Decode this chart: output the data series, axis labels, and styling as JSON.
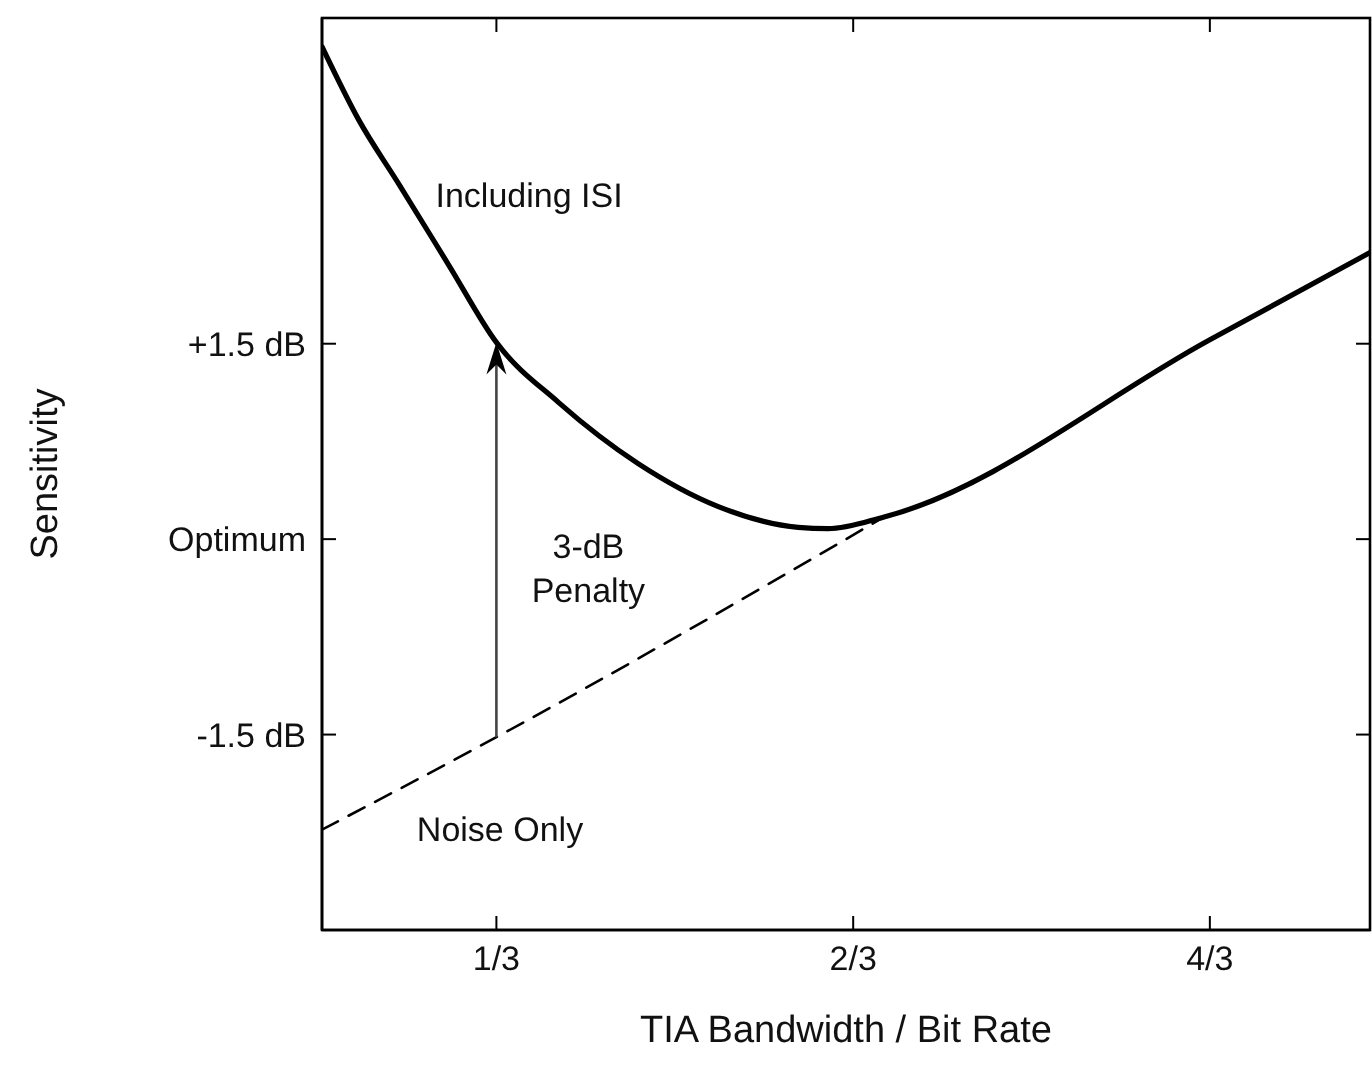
{
  "chart_data": {
    "type": "line",
    "xlabel": "TIA Bandwidth / Bit Rate",
    "ylabel": "Sensitivity",
    "log": "x",
    "xlim": [
      0.2375,
      1.82
    ],
    "ylim": [
      -3,
      4
    ],
    "xticks": [
      {
        "value": 0.3333,
        "label": "1/3"
      },
      {
        "value": 0.6667,
        "label": "2/3"
      },
      {
        "value": 1.3333,
        "label": "4/3"
      }
    ],
    "yticks": [
      {
        "value": -1.5,
        "label": "-1.5 dB"
      },
      {
        "value": 0,
        "label": "Optimum"
      },
      {
        "value": 1.5,
        "label": "+1.5 dB"
      }
    ],
    "marker": "none",
    "series": [
      {
        "name": "Including ISI",
        "color": "#000000",
        "line_style": "solid",
        "x": [
          0.2375,
          0.255,
          0.276,
          0.304,
          0.3333,
          0.376,
          0.439,
          0.513,
          0.599,
          0.635,
          0.708,
          1.3333,
          1.82
        ],
        "values": [
          3.78,
          3.22,
          2.72,
          2.1,
          1.51,
          1.05,
          0.58,
          0.25,
          0.09,
          0.08,
          0.17,
          1.53,
          2.2
        ]
      },
      {
        "name": "Noise Only",
        "color": "#000000",
        "line_style": "dashed",
        "x": [
          0.2375,
          0.3333,
          0.708
        ],
        "values": [
          -2.23,
          -1.52,
          0.17
        ]
      }
    ],
    "annotations": [
      "3-dB\nPenalty"
    ]
  }
}
